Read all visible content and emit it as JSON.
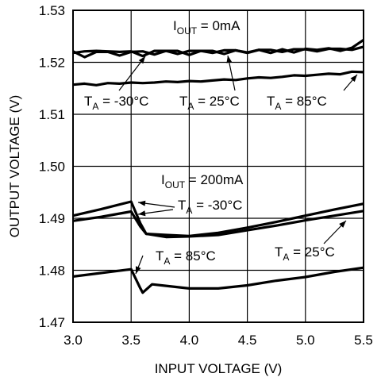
{
  "chart_data": {
    "type": "line",
    "xlabel": "INPUT VOLTAGE (V)",
    "ylabel": "OUTPUT VOLTAGE (V)",
    "xlim": [
      3.0,
      5.5
    ],
    "ylim": [
      1.47,
      1.53
    ],
    "xticks": [
      "3.0",
      "3.5",
      "4.0",
      "4.5",
      "5.0",
      "5.5"
    ],
    "yticks": [
      "1.47",
      "1.48",
      "1.49",
      "1.50",
      "1.51",
      "1.52",
      "1.53"
    ],
    "grid": true,
    "annotations": [
      {
        "id": "iout0",
        "main": "I",
        "sub": "OUT",
        "rest": " = 0mA"
      },
      {
        "id": "iout200",
        "main": "I",
        "sub": "OUT",
        "rest": " = 200mA"
      },
      {
        "id": "ta-m30-top",
        "main": "T",
        "sub": "A",
        "rest": " = -30°C"
      },
      {
        "id": "ta-25-top",
        "main": "T",
        "sub": "A",
        "rest": " = 25°C"
      },
      {
        "id": "ta-85-top",
        "main": "T",
        "sub": "A",
        "rest": " = 85°C"
      },
      {
        "id": "ta-m30-bot",
        "main": "T",
        "sub": "A",
        "rest": " = -30°C"
      },
      {
        "id": "ta-85-bot",
        "main": "T",
        "sub": "A",
        "rest": " = 85°C"
      },
      {
        "id": "ta-25-bot",
        "main": "T",
        "sub": "A",
        "rest": " = 25°C"
      }
    ],
    "series": [
      {
        "id": "iout0-ta-m30",
        "x": [
          3.0,
          3.1,
          3.2,
          3.3,
          3.4,
          3.5,
          3.6,
          3.7,
          3.8,
          3.9,
          4.0,
          4.1,
          4.2,
          4.3,
          4.4,
          4.5,
          4.6,
          4.7,
          4.8,
          4.9,
          5.0,
          5.1,
          5.2,
          5.3,
          5.4,
          5.5
        ],
        "y": [
          1.5218,
          1.5221,
          1.5222,
          1.5221,
          1.522,
          1.5221,
          1.5212,
          1.5222,
          1.5222,
          1.5216,
          1.5222,
          1.5222,
          1.5218,
          1.5223,
          1.5223,
          1.5219,
          1.5224,
          1.5224,
          1.522,
          1.5225,
          1.5225,
          1.5221,
          1.5226,
          1.5226,
          1.5224,
          1.523
        ]
      },
      {
        "id": "iout0-ta-25",
        "x": [
          3.0,
          3.1,
          3.2,
          3.3,
          3.4,
          3.5,
          3.6,
          3.7,
          3.8,
          3.9,
          4.0,
          4.1,
          4.2,
          4.3,
          4.4,
          4.5,
          4.6,
          4.7,
          4.8,
          4.9,
          5.0,
          5.1,
          5.2,
          5.3,
          5.4,
          5.5
        ],
        "y": [
          1.5221,
          1.521,
          1.522,
          1.522,
          1.5213,
          1.522,
          1.5221,
          1.5215,
          1.5222,
          1.5222,
          1.5214,
          1.5222,
          1.5222,
          1.5216,
          1.5223,
          1.5218,
          1.5224,
          1.5218,
          1.5225,
          1.5219,
          1.5226,
          1.5224,
          1.5227,
          1.5222,
          1.5228,
          1.5243
        ]
      },
      {
        "id": "iout0-ta-85",
        "x": [
          3.0,
          3.1,
          3.2,
          3.3,
          3.4,
          3.5,
          3.6,
          3.7,
          3.8,
          3.9,
          4.0,
          4.1,
          4.2,
          4.3,
          4.4,
          4.5,
          4.6,
          4.7,
          4.8,
          4.9,
          5.0,
          5.1,
          5.2,
          5.3,
          5.4,
          5.5
        ],
        "y": [
          1.5157,
          1.5159,
          1.5156,
          1.516,
          1.5159,
          1.5161,
          1.516,
          1.5161,
          1.5163,
          1.5162,
          1.5164,
          1.5163,
          1.5165,
          1.5167,
          1.5166,
          1.5169,
          1.5171,
          1.517,
          1.5172,
          1.5175,
          1.5174,
          1.5176,
          1.5178,
          1.5177,
          1.5182,
          1.5181
        ]
      },
      {
        "id": "iout200-ta-m30",
        "x": [
          3.0,
          3.25,
          3.5,
          3.58,
          3.63,
          3.8,
          4.0,
          4.25,
          4.5,
          4.75,
          5.0,
          5.25,
          5.5
        ],
        "y": [
          1.4905,
          1.4918,
          1.4932,
          1.489,
          1.487,
          1.4868,
          1.4866,
          1.4872,
          1.4882,
          1.4893,
          1.4905,
          1.4917,
          1.4928
        ]
      },
      {
        "id": "iout200-ta-25",
        "x": [
          3.0,
          3.25,
          3.5,
          3.58,
          3.63,
          3.8,
          4.0,
          4.25,
          4.5,
          4.75,
          5.0,
          5.25,
          5.5
        ],
        "y": [
          1.4895,
          1.4903,
          1.4913,
          1.4884,
          1.487,
          1.4864,
          1.4865,
          1.4868,
          1.4877,
          1.4886,
          1.4896,
          1.4905,
          1.4914
        ]
      },
      {
        "id": "iout200-ta-85",
        "x": [
          3.0,
          3.25,
          3.5,
          3.58,
          3.6,
          3.68,
          3.8,
          4.0,
          4.25,
          4.5,
          4.75,
          5.0,
          5.25,
          5.5
        ],
        "y": [
          1.4788,
          1.4795,
          1.4802,
          1.4765,
          1.4757,
          1.4773,
          1.477,
          1.4765,
          1.4765,
          1.4771,
          1.478,
          1.4787,
          1.4797,
          1.4805
        ]
      }
    ]
  }
}
